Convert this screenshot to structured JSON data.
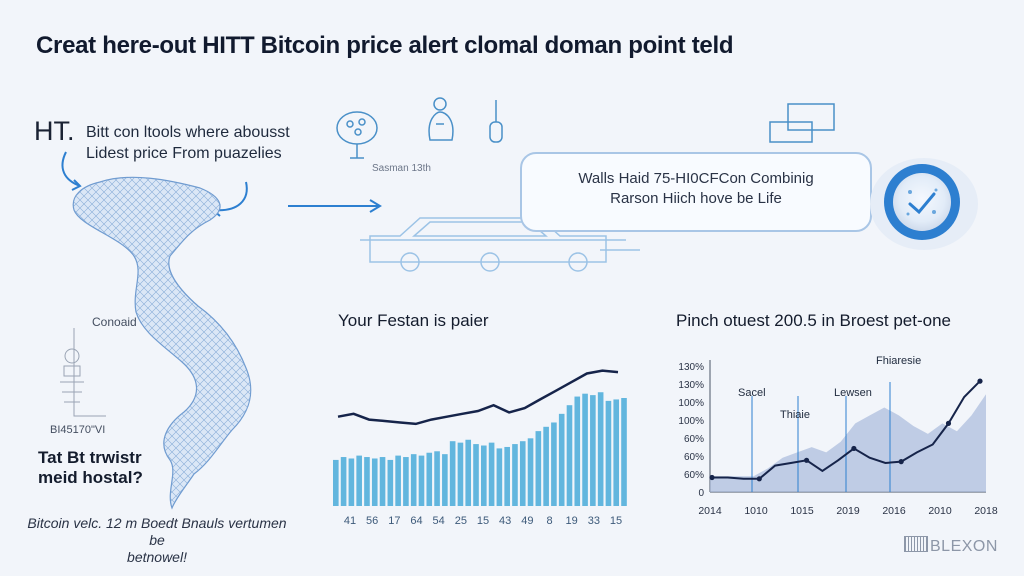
{
  "title": "Creat here-out HITT Bitcoin price alert clomal doman point teld",
  "intro": {
    "prefix": "HT.",
    "line1": "Bitt con ltools where abousst",
    "line2": "Lidest price From puazelies"
  },
  "icon_caption": "Sasman 13th",
  "callout": {
    "line1": "Walls Haid 75-HI0CFCon Combinig",
    "line2": "Rarson Hiich hove be Life"
  },
  "map_panel": {
    "label_top": "Conoaid",
    "label_code": "BI45170\"VI",
    "question": [
      "Tat Bt trwistr",
      "meid hostal?"
    ],
    "footnote": [
      "Bitcoin velc. 12 m Boedt Bnauls vertumen be",
      "betnowel!"
    ]
  },
  "brand": "BLEXON",
  "colors": {
    "bar": "#62b6de",
    "line": "#16244a",
    "accent": "#2d7fd0",
    "area": "#a9bbdb"
  },
  "chart_data": [
    {
      "type": "bar",
      "title": "Your Festan is paier",
      "tick_labels": [
        "41",
        "56",
        "17",
        "64",
        "54",
        "25",
        "15",
        "43",
        "49",
        "8",
        "19",
        "33",
        "15"
      ],
      "values": [
        32,
        34,
        33,
        35,
        34,
        33,
        34,
        32,
        35,
        34,
        36,
        35,
        37,
        38,
        36,
        45,
        44,
        46,
        43,
        42,
        44,
        40,
        41,
        43,
        45,
        47,
        52,
        55,
        58,
        64,
        70,
        76,
        78,
        77,
        79,
        73,
        74,
        75
      ],
      "line": [
        62,
        64,
        60,
        59,
        58,
        57,
        60,
        62,
        64,
        66,
        70,
        65,
        68,
        74,
        80,
        86,
        92,
        94,
        93
      ]
    },
    {
      "type": "area",
      "title": "Pinch otuest 200.5 in Broest pet-one",
      "y_ticks": [
        "130%",
        "130%",
        "100%",
        "100%",
        "60%",
        "60%",
        "60%",
        "0"
      ],
      "x_ticks": [
        "2014",
        "1010",
        "1015",
        "2019",
        "2016",
        "2010",
        "2018"
      ],
      "annotations": [
        "Sacel",
        "Lewsen",
        "Fhiaresie",
        "Thiaie"
      ],
      "series": [
        {
          "values": [
            12,
            12,
            12,
            12,
            18,
            26,
            30,
            34,
            30,
            38,
            52,
            58,
            64,
            58,
            50,
            44,
            52,
            46,
            58,
            74
          ]
        },
        {
          "values": [
            11,
            11,
            10,
            10,
            20,
            22,
            24,
            16,
            24,
            33,
            26,
            22,
            23,
            30,
            36,
            52,
            72,
            84
          ]
        }
      ]
    }
  ]
}
